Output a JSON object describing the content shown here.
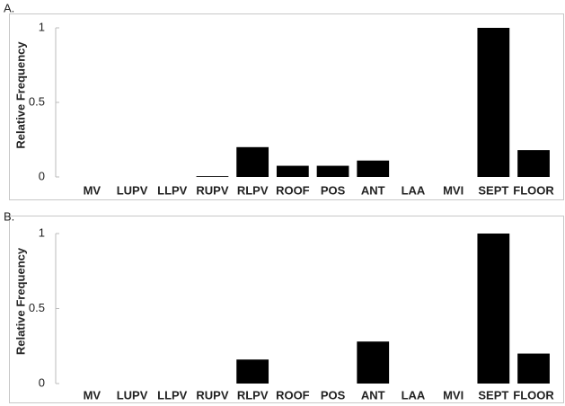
{
  "chart_data": [
    {
      "type": "bar",
      "title": "A.",
      "ylabel": "Relative Frequency",
      "categories": [
        "MV",
        "LUPV",
        "LLPV",
        "RUPV",
        "RLPV",
        "ROOF",
        "POS",
        "ANT",
        "LAA",
        "MVI",
        "SEPT",
        "FLOOR"
      ],
      "values": [
        0,
        0,
        0,
        0.005,
        0.2,
        0.075,
        0.075,
        0.11,
        0,
        0,
        1,
        0.18
      ],
      "color": "#000000",
      "ylim": [
        0,
        1
      ],
      "yticks": [
        0,
        0.5,
        1
      ]
    },
    {
      "type": "bar",
      "title": "B.",
      "ylabel": "Relative Frequency",
      "categories": [
        "MV",
        "LUPV",
        "LLPV",
        "RUPV",
        "RLPV",
        "ROOF",
        "POS",
        "ANT",
        "LAA",
        "MVI",
        "SEPT",
        "FLOOR"
      ],
      "values": [
        0,
        0,
        0,
        0,
        0.16,
        0,
        0,
        0.28,
        0,
        0,
        1,
        0.2
      ],
      "color": "#000000",
      "ylim": [
        0,
        1
      ],
      "yticks": [
        0,
        0.5,
        1
      ]
    }
  ]
}
